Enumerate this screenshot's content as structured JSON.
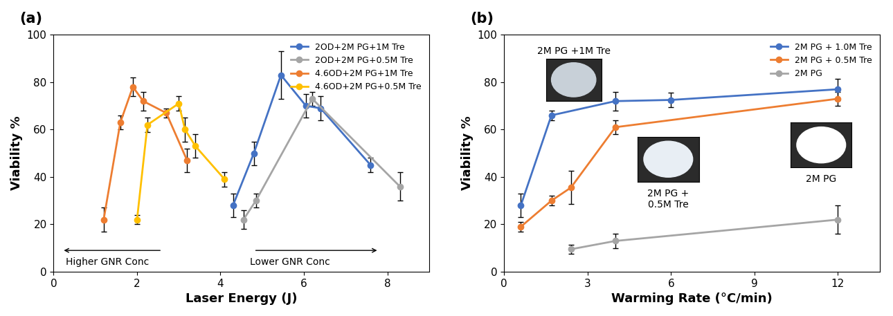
{
  "chart_data": [
    {
      "type": "line",
      "title": "(a)",
      "x_label": "Laser Energy (J)",
      "y_label": "Viability %",
      "xlim": [
        0,
        9
      ],
      "xticks": [
        0,
        2,
        4,
        6,
        8
      ],
      "ylim": [
        0,
        100
      ],
      "yticks": [
        0,
        20,
        40,
        60,
        80,
        100
      ],
      "legend": "upper right",
      "marker": "circle",
      "line_style": "solid",
      "annotations": [
        "Higher GNR Conc",
        "Lower GNR Conc"
      ],
      "series": [
        {
          "name": "2OD+2M PG+1M Tre",
          "color": "#4472c4",
          "x": [
            4.3,
            4.8,
            5.45,
            6.05,
            6.4,
            7.6
          ],
          "values": [
            28,
            50,
            83,
            70,
            69,
            45
          ],
          "errors": [
            5,
            5,
            10,
            5,
            5,
            3
          ]
        },
        {
          "name": "2OD+2M PG+0.5M Tre",
          "color": "#a5a5a5",
          "x": [
            4.55,
            4.85,
            6.2,
            8.3
          ],
          "values": [
            22,
            30,
            73,
            36
          ],
          "errors": [
            4,
            3,
            3,
            6
          ]
        },
        {
          "name": "4.6OD+2M PG+1M Tre",
          "color": "#ed7d31",
          "x": [
            1.2,
            1.6,
            1.9,
            2.15,
            2.7,
            3.2
          ],
          "values": [
            22,
            63,
            78,
            72,
            67,
            47
          ],
          "errors": [
            5,
            3,
            4,
            4,
            2,
            5
          ]
        },
        {
          "name": "4.6OD+2M PG+0.5M Tre",
          "color": "#ffc000",
          "x": [
            2.0,
            2.25,
            3.0,
            3.15,
            3.4,
            4.1
          ],
          "values": [
            22,
            62,
            71,
            60,
            53,
            39
          ],
          "errors": [
            2,
            3,
            3,
            5,
            5,
            3
          ]
        }
      ]
    },
    {
      "type": "line",
      "title": "(b)",
      "x_label": "Warming Rate (°C/min)",
      "y_label": "Viability %",
      "xlim": [
        0,
        13.5
      ],
      "xticks": [
        0,
        3,
        6,
        9,
        12
      ],
      "ylim": [
        0,
        100
      ],
      "yticks": [
        0,
        20,
        40,
        60,
        80,
        100
      ],
      "legend": "upper right",
      "marker": "circle",
      "line_style": "solid",
      "annotations": [
        "2M PG +1M Tre",
        "2M PG +\n0.5M Tre",
        "2M PG"
      ],
      "series": [
        {
          "name": "2M PG + 1.0M Tre",
          "color": "#4472c4",
          "x": [
            0.6,
            1.7,
            4,
            6,
            12
          ],
          "values": [
            28,
            66,
            72,
            72.5,
            77
          ],
          "errors": [
            5,
            2,
            4,
            3,
            4.5
          ]
        },
        {
          "name": "2M PG + 0.5M Tre",
          "color": "#ed7d31",
          "x": [
            0.6,
            1.7,
            2.4,
            4,
            12
          ],
          "values": [
            19,
            30,
            35.5,
            61,
            73
          ],
          "errors": [
            2,
            2,
            7,
            3,
            3
          ]
        },
        {
          "name": "2M PG",
          "color": "#a5a5a5",
          "x": [
            2.4,
            4,
            12
          ],
          "values": [
            9.5,
            13,
            22
          ],
          "errors": [
            2,
            3,
            6
          ]
        }
      ]
    }
  ]
}
